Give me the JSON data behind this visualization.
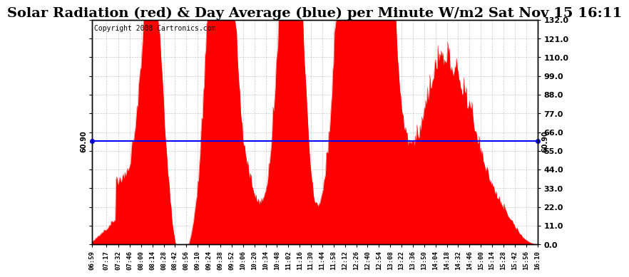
{
  "title": "Solar Radiation (red) & Day Average (blue) per Minute W/m2 Sat Nov 15 16:11",
  "copyright": "Copyright 2008 Cartronics.com",
  "avg_value": 60.9,
  "ylim": [
    0.0,
    132.0
  ],
  "yticks": [
    0.0,
    11.0,
    22.0,
    33.0,
    44.0,
    55.0,
    66.0,
    77.0,
    88.0,
    99.0,
    110.0,
    121.0,
    132.0
  ],
  "bar_color": "#FF0000",
  "line_color": "#0000FF",
  "bg_color": "#FFFFFF",
  "grid_color": "#BBBBBB",
  "title_fontsize": 14,
  "copyright_fontsize": 7,
  "x_labels": [
    "06:59",
    "07:17",
    "07:32",
    "07:46",
    "08:00",
    "08:14",
    "08:28",
    "08:42",
    "08:56",
    "09:10",
    "09:24",
    "09:38",
    "09:52",
    "10:06",
    "10:20",
    "10:34",
    "10:48",
    "11:02",
    "11:16",
    "11:30",
    "11:44",
    "11:58",
    "12:12",
    "12:26",
    "12:40",
    "12:54",
    "13:08",
    "13:22",
    "13:36",
    "13:50",
    "14:04",
    "14:18",
    "14:32",
    "14:46",
    "15:00",
    "15:14",
    "15:28",
    "15:42",
    "15:56",
    "16:10"
  ],
  "seed": 77,
  "n_points": 552
}
